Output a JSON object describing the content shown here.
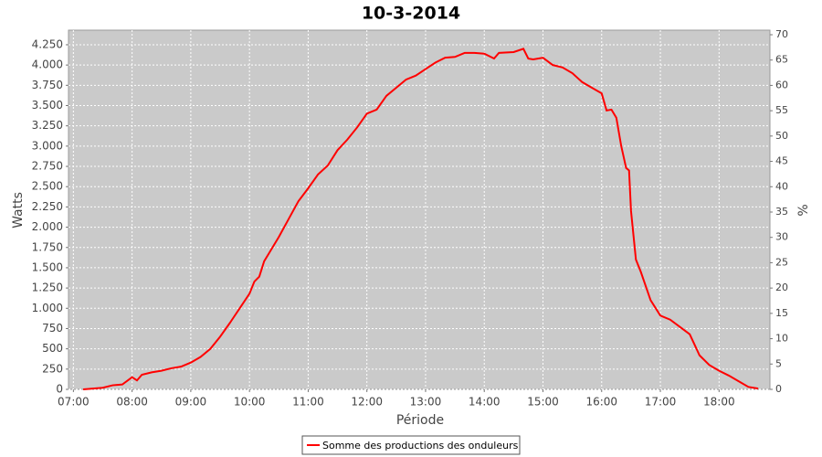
{
  "chart_data": {
    "type": "line",
    "title": "10-3-2014",
    "x_label": "Période",
    "y_label": "Watts",
    "y2_label": "%",
    "x": [
      "07:10",
      "07:20",
      "07:30",
      "07:40",
      "07:50",
      "08:00",
      "08:05",
      "08:10",
      "08:20",
      "08:30",
      "08:40",
      "08:50",
      "09:00",
      "09:10",
      "09:20",
      "09:30",
      "09:40",
      "09:50",
      "10:00",
      "10:05",
      "10:10",
      "10:15",
      "10:20",
      "10:30",
      "10:40",
      "10:50",
      "11:00",
      "11:10",
      "11:20",
      "11:30",
      "11:40",
      "11:50",
      "12:00",
      "12:10",
      "12:20",
      "12:30",
      "12:40",
      "12:50",
      "13:00",
      "13:10",
      "13:20",
      "13:30",
      "13:40",
      "13:50",
      "14:00",
      "14:10",
      "14:15",
      "14:30",
      "14:40",
      "14:45",
      "14:50",
      "15:00",
      "15:10",
      "15:20",
      "15:30",
      "15:40",
      "15:50",
      "16:00",
      "16:05",
      "16:10",
      "16:15",
      "16:20",
      "16:25",
      "16:28",
      "16:30",
      "16:35",
      "16:40",
      "16:50",
      "17:00",
      "17:10",
      "17:20",
      "17:30",
      "17:40",
      "17:50",
      "18:00",
      "18:10",
      "18:20",
      "18:30",
      "18:40"
    ],
    "series": [
      {
        "name": "Somme des productions des onduleurs",
        "color": "#ff0000",
        "values": [
          0,
          10,
          20,
          50,
          60,
          150,
          110,
          180,
          210,
          230,
          260,
          280,
          330,
          400,
          500,
          650,
          820,
          1000,
          1180,
          1330,
          1390,
          1580,
          1680,
          1880,
          2100,
          2320,
          2480,
          2650,
          2760,
          2950,
          3080,
          3230,
          3400,
          3450,
          3620,
          3720,
          3820,
          3870,
          3950,
          4030,
          4090,
          4100,
          4150,
          4150,
          4140,
          4080,
          4150,
          4160,
          4200,
          4080,
          4070,
          4090,
          4000,
          3970,
          3900,
          3790,
          3720,
          3650,
          3440,
          3450,
          3350,
          3000,
          2730,
          2700,
          2200,
          1600,
          1450,
          1100,
          910,
          860,
          770,
          680,
          420,
          300,
          230,
          170,
          100,
          30,
          10
        ]
      }
    ],
    "xlim": [
      "06:55",
      "18:52"
    ],
    "xticks": [
      "07:00",
      "08:00",
      "09:00",
      "10:00",
      "11:00",
      "12:00",
      "13:00",
      "14:00",
      "15:00",
      "16:00",
      "17:00",
      "18:00"
    ],
    "ylim": [
      0,
      4430
    ],
    "yticks": [
      0,
      250,
      500,
      750,
      {
        "value": 1000,
        "label": "1.000"
      },
      {
        "value": 1250,
        "label": "1.250"
      },
      {
        "value": 1500,
        "label": "1.500"
      },
      {
        "value": 1750,
        "label": "1.750"
      },
      {
        "value": 2000,
        "label": "2.000"
      },
      {
        "value": 2250,
        "label": "2.250"
      },
      {
        "value": 2500,
        "label": "2.500"
      },
      {
        "value": 2750,
        "label": "2.750"
      },
      {
        "value": 3000,
        "label": "3.000"
      },
      {
        "value": 3250,
        "label": "3.250"
      },
      {
        "value": 3500,
        "label": "3.500"
      },
      {
        "value": 3750,
        "label": "3.750"
      },
      {
        "value": 4000,
        "label": "4.000"
      },
      {
        "value": 4250,
        "label": "4.250"
      }
    ],
    "y2lim": [
      0,
      70.9
    ],
    "y2ticks": [
      0,
      5,
      10,
      15,
      20,
      25,
      30,
      35,
      40,
      45,
      50,
      55,
      60,
      65,
      70
    ],
    "grid": true,
    "legend": "bottom"
  }
}
